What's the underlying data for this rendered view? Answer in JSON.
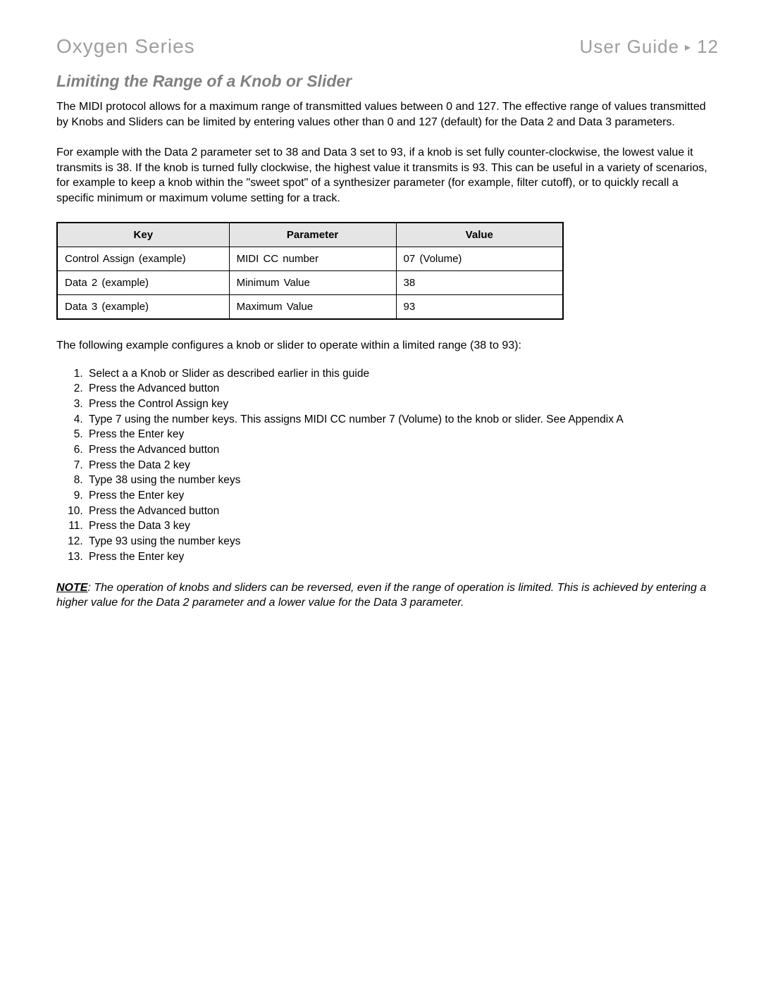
{
  "header": {
    "left": "Oxygen Series",
    "right_label": "User Guide",
    "separator": "▸",
    "page_number": "12"
  },
  "section_title": "Limiting the Range of a Knob or Slider",
  "paragraph_1": "The MIDI protocol allows for a maximum range of transmitted values between 0 and 127. The effective range of values transmitted by Knobs and Sliders can be limited by entering values other than 0 and 127 (default) for the Data 2 and Data 3 parameters.",
  "paragraph_2": "For example with the Data 2 parameter set to 38 and Data 3 set to 93, if a knob is set fully counter-clockwise, the lowest value it transmits is 38. If the knob is turned fully clockwise, the highest value it transmits is 93. This can be useful in a variety of scenarios, for example to keep a knob within the \"sweet spot\" of a synthesizer parameter (for example, filter cutoff), or to quickly recall a specific minimum or maximum volume setting for a track.",
  "table": {
    "columns": [
      "Key",
      "Parameter",
      "Value"
    ],
    "col_widths": [
      "34%",
      "33%",
      "33%"
    ],
    "header_bg": "#e5e5e5",
    "border_color": "#000000",
    "rows": [
      [
        "Control  Assign  (example)",
        "MIDI  CC  number",
        "07  (Volume)"
      ],
      [
        "Data  2  (example)",
        "Minimum  Value",
        "38"
      ],
      [
        "Data  3  (example)",
        "Maximum  Value",
        "93"
      ]
    ]
  },
  "intro_line": "The following example configures a knob or slider to operate within a limited range (38 to 93):",
  "steps": [
    "Select a a Knob or Slider as described earlier in this guide",
    "Press the Advanced button",
    "Press the Control Assign key",
    "Type 7 using the number keys. This assigns MIDI CC number 7 (Volume) to the knob or slider. See Appendix A",
    "Press the Enter key",
    "Press the Advanced button",
    "Press the Data 2 key",
    "Type 38 using the number keys",
    "Press the Enter key",
    "Press the Advanced button",
    "Press the Data 3 key",
    "Type 93 using the number keys",
    "Press the Enter key"
  ],
  "note": {
    "label": "NOTE",
    "text": ": The operation of knobs and sliders can be reversed, even if the range of operation is limited. This is achieved by entering a higher value for the Data 2 parameter and a lower value for the Data 3 parameter."
  }
}
